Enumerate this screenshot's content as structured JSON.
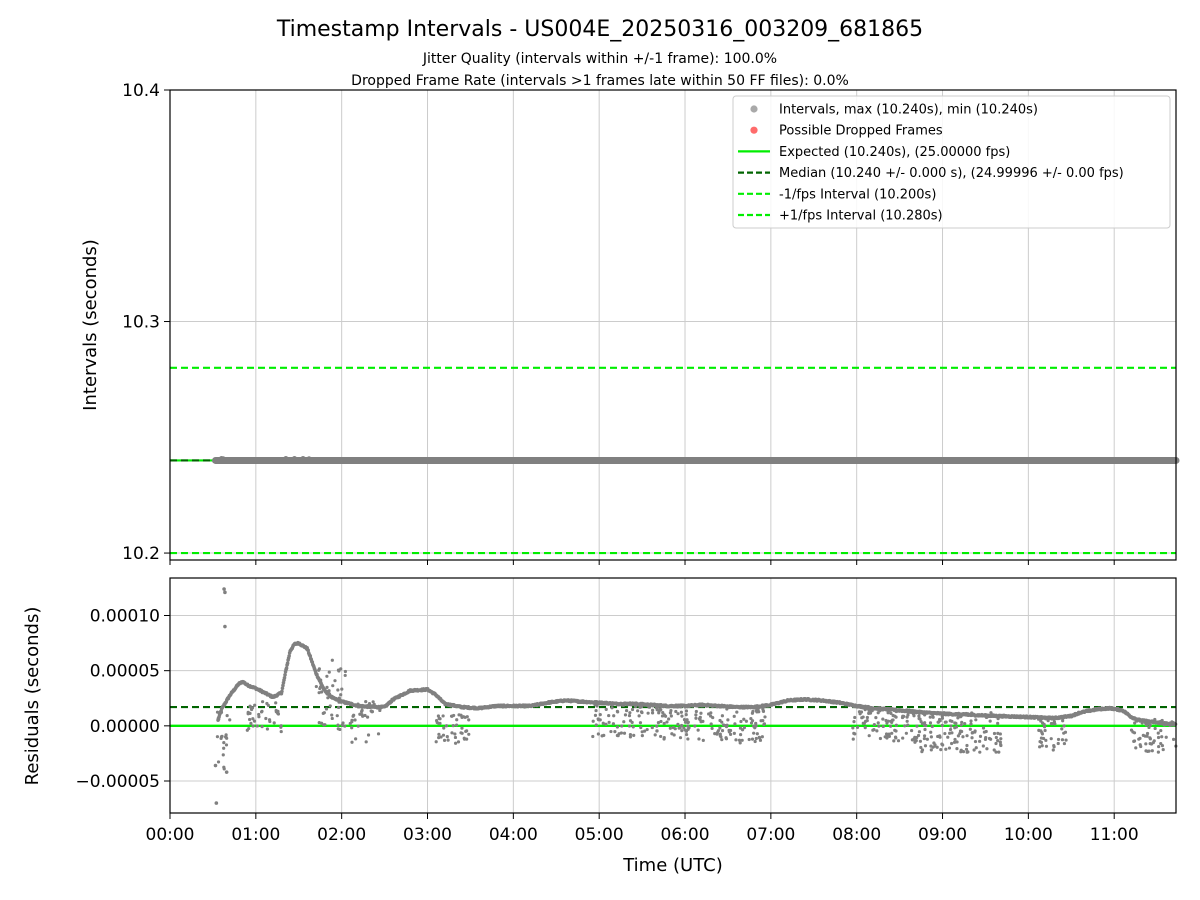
{
  "title": "Timestamp Intervals - US004E_20250316_003209_681865",
  "subtitle_lines": [
    "Jitter Quality (intervals within +/-1 frame): 100.0%",
    "Dropped Frame Rate (intervals >1 frames late within 50 FF files): 0.0%"
  ],
  "colors": {
    "points": "#808080",
    "dropped": "#ff6b6b",
    "expected": "#00ee00",
    "median": "#006400",
    "fps_interval": "#00ee00",
    "grid": "#cccccc",
    "axis": "#000000"
  },
  "chart_data": [
    {
      "type": "scatter",
      "ylabel": "Intervals (seconds)",
      "ylim": [
        10.197,
        10.4
      ],
      "xlim": [
        "00:00",
        "11:45"
      ],
      "xlim_hours": [
        0,
        11.72
      ],
      "y_ticks": [
        "10.2",
        "10.3",
        "10.4"
      ],
      "y_tick_values": [
        10.2,
        10.3,
        10.4
      ],
      "x_tick_values_hours": [
        0,
        1,
        2,
        3,
        4,
        5,
        6,
        7,
        8,
        9,
        10,
        11
      ],
      "grid": true,
      "legend_placement": "top-right",
      "legend": [
        {
          "label": "Intervals, max (10.240s), min (10.240s)",
          "kind": "point",
          "color": "#a9a9a9"
        },
        {
          "label": "Possible Dropped Frames",
          "kind": "point",
          "color": "#ff6b6b"
        },
        {
          "label": "Expected (10.240s), (25.00000 fps)",
          "kind": "solid",
          "color": "#00ee00"
        },
        {
          "label": "Median (10.240 +/- 0.000 s), (24.99996 +/- 0.00 fps)",
          "kind": "dashed",
          "color": "#006400"
        },
        {
          "label": "-1/fps Interval (10.200s)",
          "kind": "dashed",
          "color": "#00ee00"
        },
        {
          "label": "+1/fps Interval (10.280s)",
          "kind": "dashed",
          "color": "#00ee00"
        }
      ],
      "series": [
        {
          "name": "Intervals, max (10.240s), min (10.240s)",
          "x_range_hours": [
            0.53,
            11.72
          ],
          "y": 10.24
        },
        {
          "name": "Expected (10.240s), (25.00000 fps)",
          "y": 10.24
        },
        {
          "name": "Median (10.240 +/- 0.000 s), (24.99996 +/- 0.00 fps)",
          "y": 10.24
        },
        {
          "name": "-1/fps Interval (10.200s)",
          "y": 10.2
        },
        {
          "name": "+1/fps Interval (10.280s)",
          "y": 10.28
        }
      ]
    },
    {
      "type": "scatter",
      "xlabel": "Time (UTC)",
      "ylabel": "Residuals (seconds)",
      "ylim": [
        -7.9e-05,
        0.000134
      ],
      "xlim_hours": [
        0,
        11.72
      ],
      "y_ticks": [
        "−0.00005",
        "0.00000",
        "0.00005",
        "0.00010"
      ],
      "y_tick_values": [
        -5e-05,
        0,
        5e-05,
        0.0001
      ],
      "x_ticks": [
        "00:00",
        "01:00",
        "02:00",
        "03:00",
        "04:00",
        "05:00",
        "06:00",
        "07:00",
        "08:00",
        "09:00",
        "10:00",
        "11:00"
      ],
      "x_tick_values_hours": [
        0,
        1,
        2,
        3,
        4,
        5,
        6,
        7,
        8,
        9,
        10,
        11
      ],
      "grid": true,
      "expected_residual": 0,
      "median_residual": 1.7e-05,
      "baseline": {
        "x": [
          0.56,
          0.6,
          0.7,
          0.8,
          0.85,
          0.9,
          1.0,
          1.1,
          1.2,
          1.3,
          1.35,
          1.4,
          1.45,
          1.5,
          1.6,
          1.7,
          1.8,
          1.9,
          2.0,
          2.2,
          2.4,
          2.5,
          2.6,
          2.8,
          3.0,
          3.1,
          3.2,
          3.4,
          3.6,
          3.8,
          4.0,
          4.2,
          4.4,
          4.6,
          4.8,
          5.0,
          5.2,
          5.4,
          5.6,
          5.8,
          6.0,
          6.2,
          6.4,
          6.6,
          6.8,
          7.0,
          7.2,
          7.4,
          7.6,
          7.8,
          8.0,
          8.2,
          8.5,
          8.8,
          9.0,
          9.3,
          9.6,
          10.0,
          10.3,
          10.5,
          10.6,
          10.8,
          10.95,
          11.1,
          11.2,
          11.3,
          11.5,
          11.72
        ],
        "y": [
          5e-06,
          1.5e-05,
          2.8e-05,
          3.8e-05,
          4e-05,
          3.7e-05,
          3.4e-05,
          3e-05,
          2.6e-05,
          3e-05,
          5e-05,
          6.8e-05,
          7.4e-05,
          7.5e-05,
          7e-05,
          4.8e-05,
          3.2e-05,
          2.5e-05,
          2.2e-05,
          1.8e-05,
          1.7e-05,
          1.7e-05,
          2.4e-05,
          3.2e-05,
          3.3e-05,
          2.8e-05,
          2e-05,
          1.7e-05,
          1.6e-05,
          1.8e-05,
          1.8e-05,
          1.8e-05,
          2.1e-05,
          2.3e-05,
          2.2e-05,
          2.1e-05,
          2e-05,
          2e-05,
          1.9e-05,
          1.8e-05,
          1.8e-05,
          1.9e-05,
          1.8e-05,
          1.7e-05,
          1.7e-05,
          1.9e-05,
          2.3e-05,
          2.4e-05,
          2.3e-05,
          2.1e-05,
          1.8e-05,
          1.6e-05,
          1.4e-05,
          1.2e-05,
          1.1e-05,
          1e-05,
          9e-06,
          8e-06,
          7e-06,
          9e-06,
          1.2e-05,
          1.5e-05,
          1.6e-05,
          1.4e-05,
          8e-06,
          5e-06,
          3e-06,
          1e-06
        ]
      },
      "scatter_bands": [
        {
          "x_range_hours": [
            0.55,
            0.7
          ],
          "y_range": [
            -4e-05,
            2e-05
          ],
          "count": 18
        },
        {
          "x_range_hours": [
            0.9,
            1.3
          ],
          "y_range": [
            -8e-06,
            2.2e-05
          ],
          "count": 40
        },
        {
          "x_range_hours": [
            1.7,
            2.05
          ],
          "y_range": [
            -5e-06,
            6e-05
          ],
          "count": 45
        },
        {
          "x_range_hours": [
            2.1,
            2.45
          ],
          "y_range": [
            -1.5e-05,
            2.2e-05
          ],
          "count": 30
        },
        {
          "x_range_hours": [
            3.1,
            3.5
          ],
          "y_range": [
            -1.6e-05,
            1e-05
          ],
          "count": 45
        },
        {
          "x_range_hours": [
            4.9,
            5.3
          ],
          "y_range": [
            -1e-05,
            2e-05
          ],
          "count": 35
        },
        {
          "x_range_hours": [
            5.3,
            6.05
          ],
          "y_range": [
            -1.2e-05,
            1.8e-05
          ],
          "count": 90
        },
        {
          "x_range_hours": [
            6.1,
            6.95
          ],
          "y_range": [
            -1.6e-05,
            1.6e-05
          ],
          "count": 90
        },
        {
          "x_range_hours": [
            7.95,
            8.7
          ],
          "y_range": [
            -1.5e-05,
            1.5e-05
          ],
          "count": 90
        },
        {
          "x_range_hours": [
            8.7,
            9.7
          ],
          "y_range": [
            -2.4e-05,
            1.2e-05
          ],
          "count": 140
        },
        {
          "x_range_hours": [
            10.1,
            10.45
          ],
          "y_range": [
            -2.3e-05,
            8e-06
          ],
          "count": 40
        },
        {
          "x_range_hours": [
            11.2,
            11.72
          ],
          "y_range": [
            -2.4e-05,
            6e-06
          ],
          "count": 60
        }
      ],
      "outliers": {
        "x_hours": [
          0.54,
          0.53,
          0.63,
          0.64,
          0.64,
          0.66,
          0.65
        ],
        "y": [
          -7e-05,
          -3.6e-05,
          0.000124,
          0.000121,
          9e-05,
          -4.2e-05,
          -1e-05
        ]
      }
    }
  ]
}
